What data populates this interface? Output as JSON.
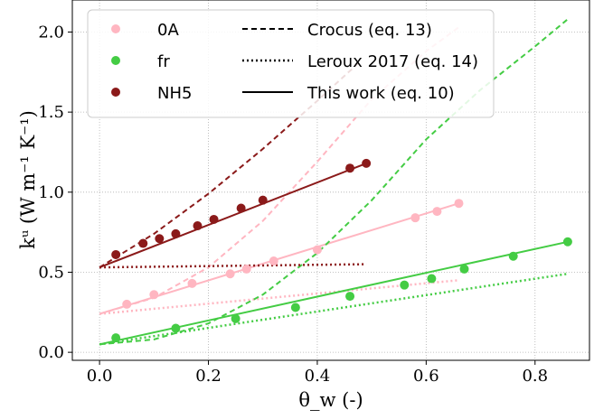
{
  "chart_data": {
    "type": "scatter",
    "xlabel": "θ_w (-)",
    "ylabel": "kᵘ (W m⁻¹ K⁻¹)",
    "xlim": [
      -0.05,
      0.9
    ],
    "ylim": [
      -0.05,
      2.2
    ],
    "xticks": [
      0.0,
      0.2,
      0.4,
      0.6,
      0.8
    ],
    "xtick_labels": [
      "0.0",
      "0.2",
      "0.4",
      "0.6",
      "0.8"
    ],
    "yticks": [
      0.0,
      0.5,
      1.0,
      1.5,
      2.0
    ],
    "ytick_labels": [
      "0.0",
      "0.5",
      "1.0",
      "1.5",
      "2.0"
    ],
    "grid": true,
    "legend_position": "top-left",
    "legend_samples": [
      "0A",
      "fr",
      "NH5"
    ],
    "legend_models": [
      "Crocus (eq. 13)",
      "Leroux 2017 (eq. 14)",
      "This work (eq. 10)"
    ],
    "series": [
      {
        "name": "0A",
        "color": "#ffb6c1",
        "points": [
          [
            0.05,
            0.3
          ],
          [
            0.1,
            0.36
          ],
          [
            0.17,
            0.43
          ],
          [
            0.24,
            0.49
          ],
          [
            0.27,
            0.52
          ],
          [
            0.32,
            0.57
          ],
          [
            0.4,
            0.64
          ],
          [
            0.58,
            0.84
          ],
          [
            0.62,
            0.88
          ],
          [
            0.66,
            0.93
          ]
        ],
        "this_work": [
          [
            0.0,
            0.24
          ],
          [
            0.66,
            0.93
          ]
        ],
        "crocus": [
          [
            0.0,
            0.24
          ],
          [
            0.1,
            0.34
          ],
          [
            0.2,
            0.53
          ],
          [
            0.3,
            0.82
          ],
          [
            0.4,
            1.19
          ],
          [
            0.5,
            1.58
          ],
          [
            0.6,
            1.88
          ],
          [
            0.66,
            2.03
          ]
        ],
        "leroux": [
          [
            0.0,
            0.24
          ],
          [
            0.66,
            0.45
          ]
        ]
      },
      {
        "name": "fr",
        "color": "#44cc44",
        "points": [
          [
            0.03,
            0.09
          ],
          [
            0.14,
            0.15
          ],
          [
            0.25,
            0.21
          ],
          [
            0.36,
            0.28
          ],
          [
            0.46,
            0.35
          ],
          [
            0.56,
            0.42
          ],
          [
            0.61,
            0.46
          ],
          [
            0.67,
            0.52
          ],
          [
            0.76,
            0.6
          ],
          [
            0.86,
            0.69
          ]
        ],
        "this_work": [
          [
            0.0,
            0.05
          ],
          [
            0.86,
            0.69
          ]
        ],
        "crocus": [
          [
            0.0,
            0.05
          ],
          [
            0.1,
            0.08
          ],
          [
            0.2,
            0.18
          ],
          [
            0.3,
            0.36
          ],
          [
            0.4,
            0.62
          ],
          [
            0.5,
            0.95
          ],
          [
            0.6,
            1.33
          ],
          [
            0.7,
            1.64
          ],
          [
            0.8,
            1.91
          ],
          [
            0.86,
            2.08
          ]
        ],
        "leroux": [
          [
            0.0,
            0.05
          ],
          [
            0.86,
            0.49
          ]
        ]
      },
      {
        "name": "NH5",
        "color": "#8b1a1a",
        "points": [
          [
            0.03,
            0.61
          ],
          [
            0.08,
            0.68
          ],
          [
            0.11,
            0.71
          ],
          [
            0.14,
            0.74
          ],
          [
            0.18,
            0.79
          ],
          [
            0.21,
            0.83
          ],
          [
            0.26,
            0.9
          ],
          [
            0.3,
            0.95
          ],
          [
            0.46,
            1.15
          ],
          [
            0.49,
            1.18
          ]
        ],
        "this_work": [
          [
            0.0,
            0.53
          ],
          [
            0.49,
            1.18
          ]
        ],
        "crocus": [
          [
            0.0,
            0.53
          ],
          [
            0.1,
            0.74
          ],
          [
            0.2,
            0.99
          ],
          [
            0.3,
            1.27
          ],
          [
            0.4,
            1.57
          ],
          [
            0.48,
            1.82
          ]
        ],
        "leroux": [
          [
            0.0,
            0.53
          ],
          [
            0.49,
            0.55
          ]
        ]
      }
    ]
  }
}
